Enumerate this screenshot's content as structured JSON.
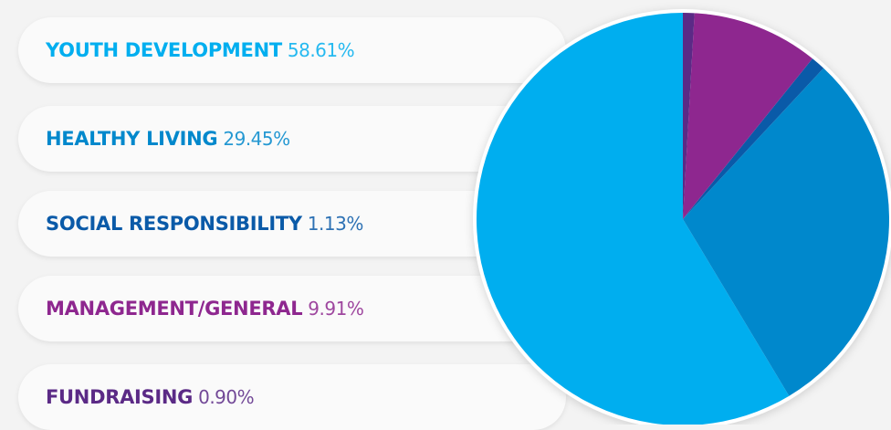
{
  "chart_data": {
    "type": "pie",
    "categories": [
      "YOUTH DEVELOPMENT",
      "HEALTHY LIVING",
      "SOCIAL RESPONSIBILITY",
      "MANAGEMENT/GENERAL",
      "FUNDRAISING"
    ],
    "values": [
      58.61,
      29.45,
      1.13,
      9.91,
      0.9
    ],
    "value_labels": [
      "58.61%",
      "29.45%",
      "1.13%",
      "9.91%",
      "0.90%"
    ],
    "colors": [
      "#00aeef",
      "#0088cc",
      "#0a5aa8",
      "#8e278f",
      "#5b2a86"
    ]
  }
}
